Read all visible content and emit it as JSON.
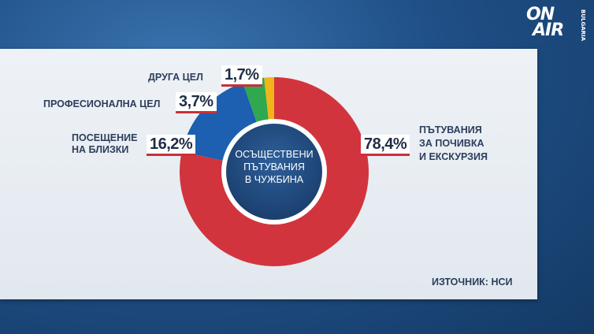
{
  "logo": {
    "line1": "ON",
    "line2": "AIR",
    "sub": "BULGARIA"
  },
  "chart_data": {
    "type": "pie",
    "title": "Осъществени пътувания в чужбина",
    "categories": [
      "Пътувания за почивка и екскурзия",
      "Посещение на близки",
      "Професионална цел",
      "Друга цел"
    ],
    "values": [
      78.4,
      16.2,
      3.7,
      1.7
    ],
    "labels": [
      "78,4%",
      "16,2%",
      "3,7%",
      "1,7%"
    ],
    "colors": [
      "#d2343d",
      "#1d5fb0",
      "#2fa84f",
      "#f2b519"
    ],
    "center_lines": [
      "ОСЪЩЕСТВЕНИ",
      "ПЪТУВАНИЯ",
      "В ЧУЖБИНА"
    ]
  },
  "labels": {
    "leisure_l1": "Пътувания",
    "leisure_l2": "за почивка",
    "leisure_l3": "и екскурзия",
    "visit_l1": "Посещение",
    "visit_l2": "на близки",
    "prof": "Професионална цел",
    "other": "Друга цел"
  },
  "source": "ИЗТОЧНИК: НСИ"
}
